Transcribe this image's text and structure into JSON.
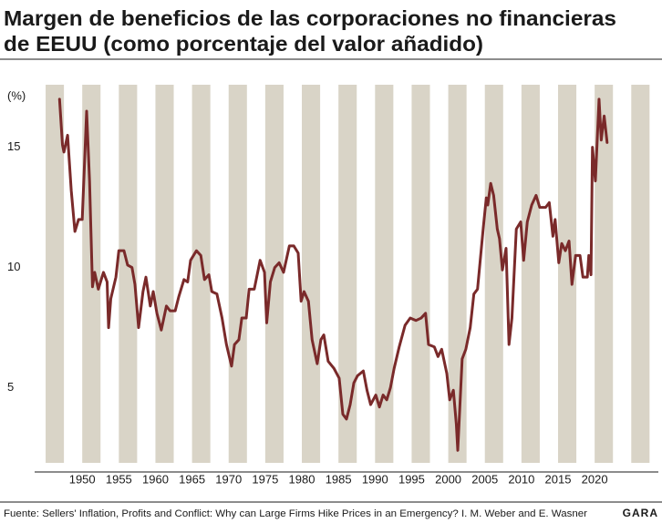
{
  "chart_data": {
    "type": "line",
    "title_lines": [
      "Margen de beneficios de las corporaciones no financieras",
      "de EEUU (como porcentaje del valor añadido)"
    ],
    "y_label": "(%)",
    "source": "Fuente: Sellers' Inflation, Profits and Conflict: Why can Large Firms Hike Prices in an Emergency? I. M. Weber and E. Wasner",
    "logo": "GARA",
    "x": [
      1946.9,
      1947.3,
      1947.5,
      1948.0,
      1948.5,
      1949.0,
      1949.5,
      1950.0,
      1950.6,
      1951.0,
      1951.4,
      1951.7,
      1952.2,
      1952.9,
      1953.4,
      1953.6,
      1953.9,
      1954.6,
      1955.0,
      1955.7,
      1956.2,
      1956.8,
      1957.2,
      1957.7,
      1958.3,
      1958.7,
      1959.3,
      1959.7,
      1960.2,
      1960.8,
      1961.5,
      1962.0,
      1962.7,
      1963.2,
      1963.9,
      1964.4,
      1964.8,
      1965.6,
      1966.2,
      1966.7,
      1967.3,
      1967.7,
      1968.4,
      1969.1,
      1969.7,
      1970.4,
      1970.8,
      1971.4,
      1971.8,
      1972.4,
      1972.8,
      1973.5,
      1974.3,
      1974.9,
      1975.2,
      1975.7,
      1976.3,
      1976.9,
      1977.5,
      1978.3,
      1978.9,
      1979.5,
      1979.9,
      1980.3,
      1980.9,
      1981.4,
      1982.1,
      1982.6,
      1983.0,
      1983.6,
      1984.4,
      1985.1,
      1985.6,
      1986.1,
      1986.6,
      1987.1,
      1987.6,
      1988.4,
      1988.9,
      1989.4,
      1990.1,
      1990.6,
      1991.1,
      1991.6,
      1992.1,
      1992.6,
      1993.3,
      1994.1,
      1994.8,
      1995.6,
      1996.3,
      1996.9,
      1997.3,
      1998.1,
      1998.6,
      1999.1,
      1999.8,
      2000.2,
      2000.7,
      2001.1,
      2001.3,
      2001.9,
      2002.4,
      2003.0,
      2003.5,
      2004.0,
      2004.8,
      2005.2,
      2005.4,
      2005.8,
      2006.2,
      2006.7,
      2007.0,
      2007.4,
      2007.9,
      2008.3,
      2008.7,
      2009.3,
      2009.9,
      2010.3,
      2010.8,
      2011.4,
      2012.0,
      2012.5,
      2013.3,
      2013.8,
      2014.3,
      2014.6,
      2015.1,
      2015.5,
      2016.0,
      2016.5,
      2016.9,
      2017.4,
      2018.0,
      2018.4,
      2019.0,
      2019.2,
      2019.5,
      2019.7,
      2020.1,
      2020.6,
      2020.9,
      2021.3,
      2021.7
    ],
    "series": [
      {
        "name": "Margen de beneficios",
        "color": "#7a2a2a",
        "values": [
          17.0,
          15.1,
          14.8,
          15.5,
          13.2,
          11.5,
          12.0,
          12.0,
          16.5,
          13.6,
          9.2,
          9.8,
          9.1,
          9.8,
          9.4,
          7.5,
          8.7,
          9.6,
          10.7,
          10.7,
          10.1,
          10.0,
          9.3,
          7.5,
          9.0,
          9.6,
          8.4,
          9.0,
          8.1,
          7.4,
          8.4,
          8.2,
          8.2,
          8.8,
          9.5,
          9.4,
          10.3,
          10.7,
          10.5,
          9.5,
          9.7,
          9.0,
          8.9,
          7.9,
          6.8,
          5.9,
          6.8,
          7.0,
          7.9,
          7.9,
          9.1,
          9.1,
          10.3,
          9.8,
          7.7,
          9.4,
          10.0,
          10.2,
          9.8,
          10.9,
          10.9,
          10.6,
          8.6,
          9.0,
          8.6,
          7.0,
          6.0,
          7.0,
          7.2,
          6.1,
          5.8,
          5.4,
          3.9,
          3.7,
          4.3,
          5.2,
          5.5,
          5.7,
          4.9,
          4.3,
          4.7,
          4.2,
          4.7,
          4.5,
          5.0,
          5.8,
          6.7,
          7.6,
          7.9,
          7.8,
          7.9,
          8.1,
          6.8,
          6.7,
          6.3,
          6.6,
          5.6,
          4.5,
          4.9,
          3.5,
          2.4,
          6.2,
          6.6,
          7.5,
          8.9,
          9.1,
          11.7,
          12.9,
          12.6,
          13.5,
          13.0,
          11.6,
          11.2,
          9.9,
          10.8,
          6.8,
          7.9,
          11.6,
          11.9,
          10.3,
          11.9,
          12.6,
          13.0,
          12.5,
          12.5,
          12.7,
          11.3,
          12.0,
          10.2,
          11.0,
          10.7,
          11.1,
          9.3,
          10.5,
          10.5,
          9.6,
          9.6,
          10.5,
          9.7,
          15.0,
          13.6,
          17.0,
          15.3,
          16.3,
          15.2
        ]
      }
    ],
    "xlim": [
      1943.5,
      2029.2
    ],
    "xticks": [
      1950,
      1955,
      1960,
      1965,
      1970,
      1975,
      1980,
      1985,
      1990,
      1995,
      2000,
      2005,
      2010,
      2015,
      2020
    ],
    "ylim": [
      1.5,
      17.6
    ],
    "yticks": [
      5,
      10,
      15
    ],
    "grid": false,
    "stripe_color": "#d9d4c7"
  }
}
